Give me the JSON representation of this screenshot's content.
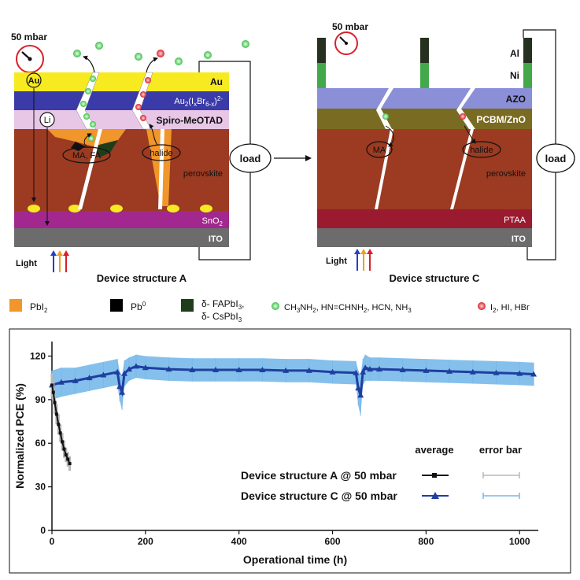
{
  "figure": {
    "panel_a": {
      "pressure_label": "50 mbar",
      "layers": [
        {
          "name": "Au",
          "color": "#f7ea20"
        },
        {
          "name": "Au2(IxBr6-x)2-",
          "color": "#3a3aa8"
        },
        {
          "name": "Spiro-MeOTAD",
          "color": "#e8c6e6"
        },
        {
          "name": "perovskite",
          "color": "#9c3b22"
        },
        {
          "name": "SnO2",
          "color": "#a2278f"
        },
        {
          "name": "ITO",
          "color": "#6c6c6c"
        }
      ],
      "au_label": "Au",
      "au_compound_main": "Au",
      "au_compound_sub": "2",
      "au_compound_paren": "(I",
      "au_compound_x": "x",
      "au_compound_br": "Br",
      "au_compound_6x": "6-x",
      "au_compound_close": ")",
      "au_compound_charge": "2-",
      "spiro_label": "Spiro-MeOTAD",
      "perovskite_label": "perovskite",
      "sno2_main": "SnO",
      "sno2_sub": "2",
      "ito_label": "ITO",
      "au_circle": "Au",
      "li_circle": "Li",
      "ma_fa_label": "MA, FA",
      "halide_label": "halide",
      "load_label": "load",
      "light_label": "Light",
      "caption": "Device structure A"
    },
    "panel_c": {
      "pressure_label": "50 mbar",
      "layers": [
        {
          "name": "AZO",
          "color": "#8b8fd8"
        },
        {
          "name": "PCBM/ZnO",
          "color": "#7a6b22"
        },
        {
          "name": "perovskite",
          "color": "#9c3b22"
        },
        {
          "name": "PTAA",
          "color": "#9a1a30"
        },
        {
          "name": "ITO",
          "color": "#6c6c6c"
        }
      ],
      "al_label": "Al",
      "ni_label": "Ni",
      "azo_label": "AZO",
      "pcbm_label": "PCBM/ZnO",
      "perovskite_label": "perovskite",
      "ptaa_label": "PTAA",
      "ito_label": "ITO",
      "ma_label": "MA",
      "halide_label": "halide",
      "load_label": "load",
      "light_label": "Light",
      "caption": "Device structure C"
    },
    "legend": {
      "pbi2_main": "PbI",
      "pbi2_sub": "2",
      "pb0_main": "Pb",
      "pb0_sup": "0",
      "delta_line1": "δ- FAPbI",
      "delta_line1_sub": "3",
      "delta_line1_tail": ",",
      "delta_line2": "δ- CsPbI",
      "delta_line2_sub": "3",
      "green_text_a": "CH",
      "green_text_a_sub1": "3",
      "green_text_b": "NH",
      "green_text_b_sub": "2",
      "green_text_c": ", HN=CHNH",
      "green_text_c_sub": "2",
      "green_text_d": ", HCN, NH",
      "green_text_d_sub": "3",
      "red_text_a": "I",
      "red_text_a_sub": "2",
      "red_text_b": ", HI, HBr",
      "colors": {
        "pbi2": "#f0962a",
        "pb0": "#000000",
        "delta": "#1f3d1a",
        "green": "#3fbf4a",
        "red": "#d8202a"
      }
    }
  },
  "chart_data": {
    "type": "line",
    "xlabel": "Operational time (h)",
    "ylabel": "Normalized PCE (%)",
    "xlim": [
      0,
      1040
    ],
    "ylim": [
      0,
      130
    ],
    "xticks": [
      0,
      200,
      400,
      600,
      800,
      1000
    ],
    "yticks": [
      0,
      30,
      60,
      90,
      120
    ],
    "legend_header_average": "average",
    "legend_header_error": "error bar",
    "series": [
      {
        "name": "Device structure A @ 50 mbar",
        "color": "#111111",
        "error_color": "#b8b8b8",
        "marker": "square",
        "x": [
          0,
          3,
          6,
          10,
          14,
          18,
          22,
          26,
          30,
          34,
          38
        ],
        "y": [
          100,
          95,
          88,
          80,
          73,
          67,
          61,
          56,
          52,
          49,
          46
        ],
        "err": [
          8,
          8,
          8,
          7,
          7,
          6,
          6,
          6,
          5,
          5,
          5
        ]
      },
      {
        "name": "Device structure C @ 50 mbar",
        "color": "#1f3fa0",
        "error_color": "#78b9ea",
        "marker": "triangle",
        "x": [
          0,
          20,
          50,
          80,
          110,
          140,
          145,
          150,
          155,
          165,
          180,
          200,
          250,
          300,
          350,
          400,
          450,
          500,
          550,
          600,
          650,
          655,
          660,
          665,
          670,
          680,
          700,
          750,
          800,
          850,
          900,
          950,
          1000,
          1030
        ],
        "y": [
          100,
          102,
          103,
          105,
          107,
          109,
          99,
          95,
          108,
          111,
          113,
          112,
          111,
          110.5,
          110.5,
          110.5,
          110.5,
          110,
          110,
          109,
          108.5,
          98,
          93,
          109,
          112,
          111,
          111,
          110.5,
          110,
          109.5,
          109,
          108.5,
          108,
          107.5
        ],
        "err": [
          10,
          10,
          9,
          9,
          9,
          9,
          10,
          12,
          9,
          8,
          8,
          8,
          8,
          8,
          8,
          8,
          8,
          8,
          8,
          8,
          8,
          12,
          14,
          9,
          9,
          8,
          8,
          8,
          8,
          8,
          8,
          8,
          8,
          8
        ]
      }
    ]
  }
}
